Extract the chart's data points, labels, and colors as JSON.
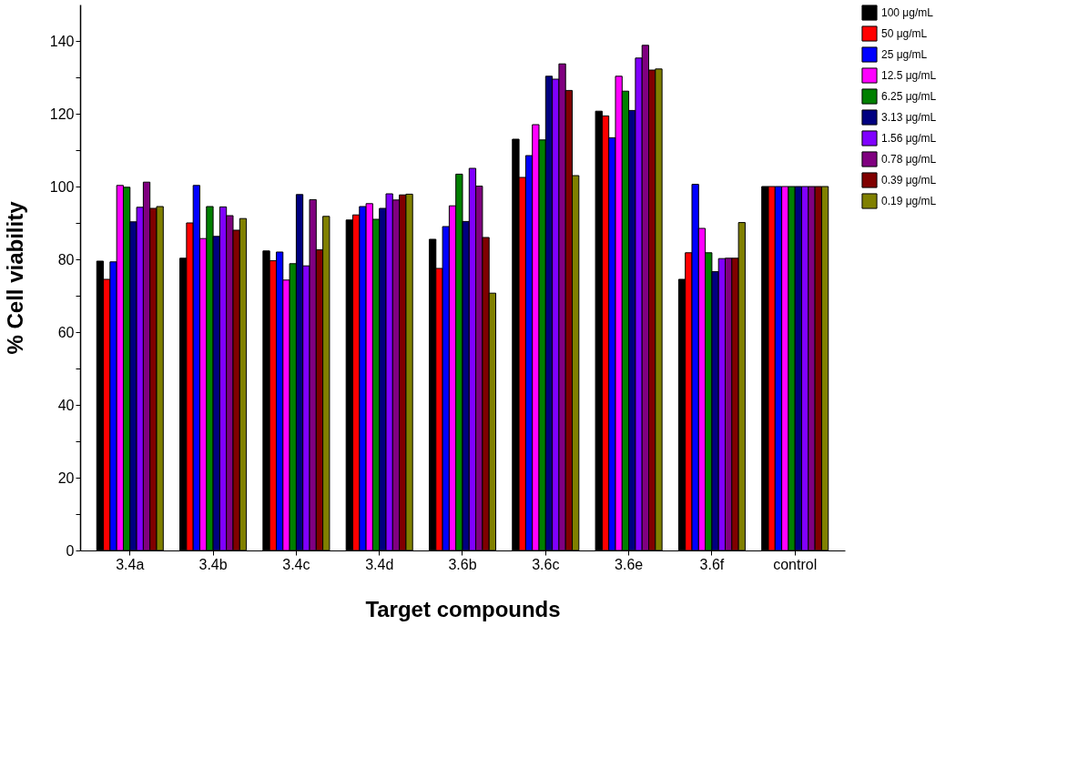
{
  "chart_data": {
    "type": "bar",
    "xlabel": "Target compounds",
    "ylabel": "% Cell viability",
    "categories": [
      "3.4a",
      "3.4b",
      "3.4c",
      "3.4d",
      "3.6b",
      "3.6c",
      "3.6e",
      "3.6f",
      "control"
    ],
    "series": [
      {
        "name": "100 μg/mL",
        "color": "#000000",
        "values": [
          79.5,
          80.3,
          82.3,
          90.8,
          85.5,
          113,
          120.7,
          74.5,
          100
        ]
      },
      {
        "name": "50 μg/mL",
        "color": "#ff0000",
        "values": [
          74.5,
          90,
          79.6,
          92.2,
          77.5,
          102.5,
          119.4,
          81.8,
          100
        ]
      },
      {
        "name": "25 μg/mL",
        "color": "#0000ff",
        "values": [
          79.3,
          100.3,
          82,
          94.5,
          89,
          108.5,
          113.4,
          100.6,
          100
        ]
      },
      {
        "name": "12.5 μg/mL",
        "color": "#ff00ff",
        "values": [
          100.3,
          85.7,
          74.3,
          95.3,
          94.7,
          117,
          130.3,
          88.5,
          100
        ]
      },
      {
        "name": "6.25 μg/mL",
        "color": "#008000",
        "values": [
          99.8,
          94.5,
          78.8,
          91,
          103.4,
          112.8,
          126.2,
          81.8,
          100
        ]
      },
      {
        "name": "3.13 μg/mL",
        "color": "#000080",
        "values": [
          90.3,
          86.3,
          97.8,
          94,
          90.4,
          130.3,
          120.9,
          76.6,
          100
        ]
      },
      {
        "name": "1.56 μg/mL",
        "color": "#8000ff",
        "values": [
          94.3,
          94.4,
          78.2,
          98,
          105,
          129.5,
          135.3,
          80.2,
          100
        ]
      },
      {
        "name": "0.78 μg/mL",
        "color": "#800080",
        "values": [
          101.2,
          92,
          96.4,
          96.3,
          100.1,
          133.7,
          138.8,
          80.3,
          100
        ]
      },
      {
        "name": "0.39 μg/mL",
        "color": "#800000",
        "values": [
          94,
          88,
          82.6,
          97.7,
          86,
          126.4,
          132,
          80.3,
          100
        ]
      },
      {
        "name": "0.19 μg/mL",
        "color": "#808000",
        "values": [
          94.5,
          91.2,
          91.8,
          97.9,
          70.7,
          103,
          132.3,
          90.1,
          100
        ]
      }
    ],
    "ylim": [
      0,
      150
    ],
    "yticks": [
      0,
      {
        "value": 10,
        "label": null
      },
      20,
      {
        "value": 30,
        "label": null
      },
      40,
      {
        "value": 50,
        "label": null
      },
      60,
      {
        "value": 70,
        "label": null
      },
      80,
      {
        "value": 90,
        "label": null
      },
      100,
      {
        "value": 110,
        "label": null
      },
      120,
      {
        "value": 130,
        "label": null
      },
      140
    ],
    "grid": false,
    "legend": "right"
  }
}
